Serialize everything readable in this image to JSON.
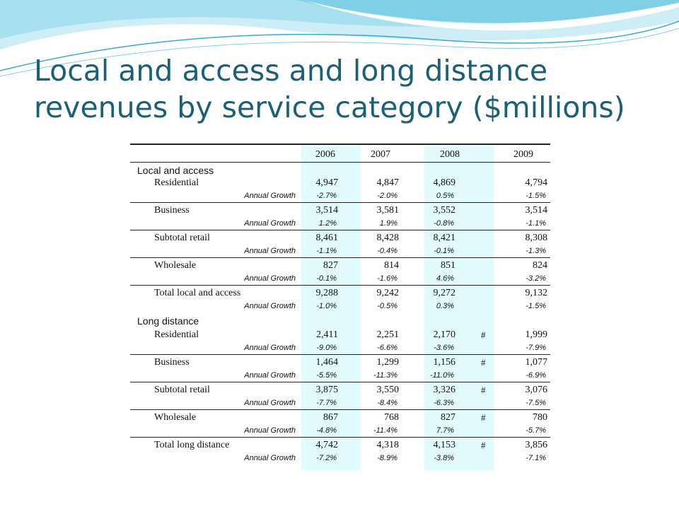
{
  "slide": {
    "title": "Local and access and long distance revenues by service category ($millions)"
  },
  "colors": {
    "title": "#1b6077",
    "column_band": "#e2fbff",
    "swoosh_light": "#cdeef7",
    "swoosh_mid": "#7fd0e6",
    "swoosh_dark": "#3aa9cc"
  },
  "table": {
    "years": [
      "2006",
      "2007",
      "2008",
      "2009"
    ],
    "growth_label": "Annual Growth",
    "sections": [
      {
        "label": "Local and access",
        "rows": [
          {
            "label": "Residential",
            "values": [
              "4,947",
              "4,847",
              "4,869",
              "4,794"
            ],
            "growth": [
              "-2.7%",
              "-2.0%",
              "0.5%",
              "-1.5%"
            ],
            "hash": ""
          },
          {
            "label": "Business",
            "values": [
              "3,514",
              "3,581",
              "3,552",
              "3,514"
            ],
            "growth": [
              "1.2%",
              "1.9%",
              "-0.8%",
              "-1.1%"
            ],
            "hash": ""
          },
          {
            "label": "Subtotal retail",
            "values": [
              "8,461",
              "8,428",
              "8,421",
              "8,308"
            ],
            "growth": [
              "-1.1%",
              "-0.4%",
              "-0.1%",
              "-1.3%"
            ],
            "hash": ""
          },
          {
            "label": "Wholesale",
            "values": [
              "827",
              "814",
              "851",
              "824"
            ],
            "growth": [
              "-0.1%",
              "-1.6%",
              "4.6%",
              "-3.2%"
            ],
            "hash": ""
          },
          {
            "label": "Total local and access",
            "values": [
              "9,288",
              "9,242",
              "9,272",
              "9,132"
            ],
            "growth": [
              "-1.0%",
              "-0.5%",
              "0.3%",
              "-1.5%"
            ],
            "hash": ""
          }
        ]
      },
      {
        "label": "Long distance",
        "rows": [
          {
            "label": "Residential",
            "values": [
              "2,411",
              "2,251",
              "2,170",
              "1,999"
            ],
            "growth": [
              "-9.0%",
              "-6.6%",
              "-3.6%",
              "-7.9%"
            ],
            "hash": "#"
          },
          {
            "label": "Business",
            "values": [
              "1,464",
              "1,299",
              "1,156",
              "1,077"
            ],
            "growth": [
              "-5.5%",
              "-11.3%",
              "-11.0%",
              "-6.9%"
            ],
            "hash": "#"
          },
          {
            "label": "Subtotal retail",
            "values": [
              "3,875",
              "3,550",
              "3,326",
              "3,076"
            ],
            "growth": [
              "-7.7%",
              "-8.4%",
              "-6.3%",
              "-7.5%"
            ],
            "hash": "#"
          },
          {
            "label": "Wholesale",
            "values": [
              "867",
              "768",
              "827",
              "780"
            ],
            "growth": [
              "-4.8%",
              "-11.4%",
              "7.7%",
              "-5.7%"
            ],
            "hash": "#"
          },
          {
            "label": "Total long distance",
            "values": [
              "4,742",
              "4,318",
              "4,153",
              "3,856"
            ],
            "growth": [
              "-7.2%",
              "-8.9%",
              "-3.8%",
              "-7.1%"
            ],
            "hash": "#"
          }
        ]
      }
    ]
  }
}
